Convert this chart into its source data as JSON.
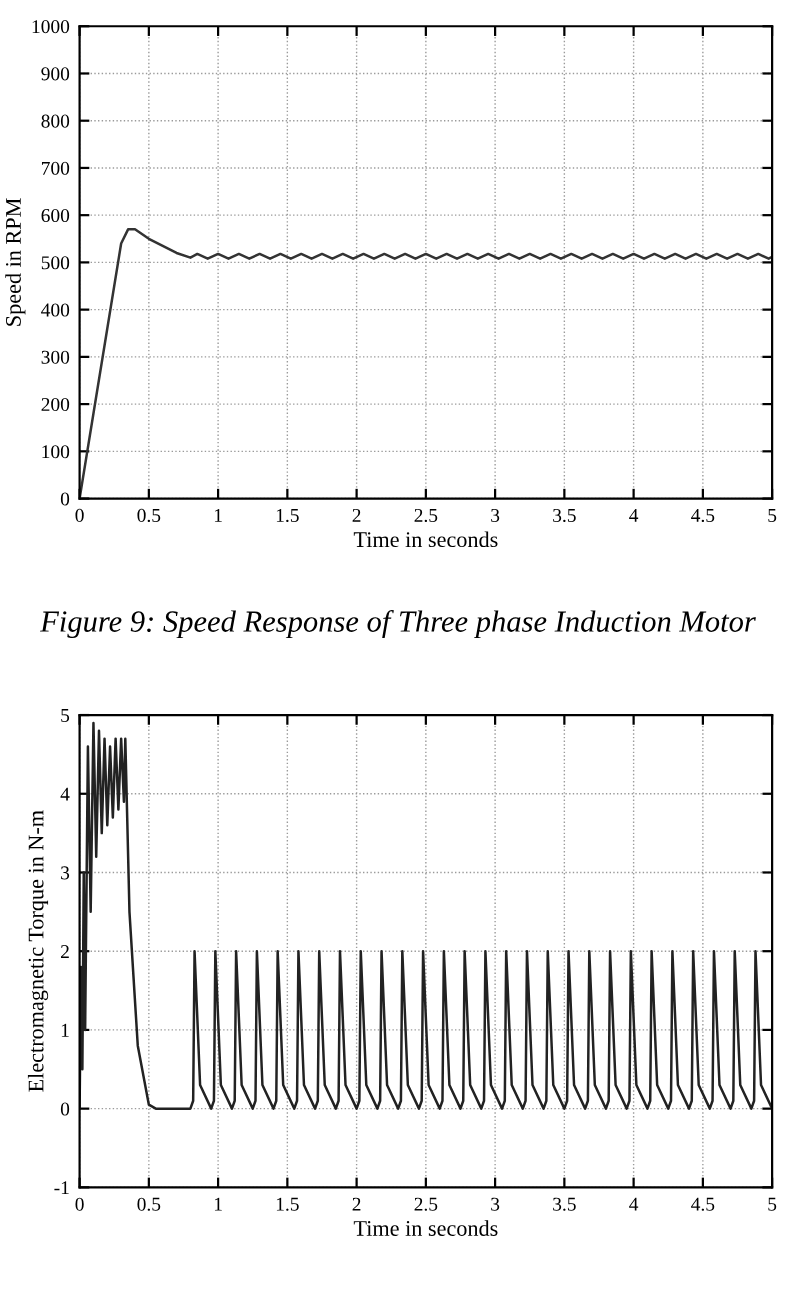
{
  "chart_data": [
    {
      "type": "line",
      "xlabel": "Time in seconds",
      "ylabel": "Speed in RPM",
      "annotations": [
        "Figure 9: Speed Response of Three phase Induction Motor"
      ],
      "xlim": [
        0,
        5
      ],
      "ylim": [
        0,
        1000
      ],
      "xticks": [
        0,
        0.5,
        1,
        1.5,
        2,
        2.5,
        3,
        3.5,
        4,
        4.5,
        5
      ],
      "yticks": [
        0,
        100,
        200,
        300,
        400,
        500,
        600,
        700,
        800,
        900,
        1000
      ],
      "grid": true,
      "line_style": "solid",
      "marker": "none",
      "series": [
        {
          "color": "#333333",
          "x": [
            0,
            0.1,
            0.2,
            0.3,
            0.35,
            0.4,
            0.5,
            0.6,
            0.7,
            0.8,
            0.85,
            0.925,
            1.0,
            1.075,
            1.15,
            1.225,
            1.3,
            1.375,
            1.45,
            1.525,
            1.6,
            1.675,
            1.75,
            1.825,
            1.9,
            1.975,
            2.05,
            2.125,
            2.2,
            2.275,
            2.35,
            2.425,
            2.5,
            2.575,
            2.65,
            2.725,
            2.8,
            2.875,
            2.95,
            3.025,
            3.1,
            3.175,
            3.25,
            3.325,
            3.4,
            3.475,
            3.55,
            3.625,
            3.7,
            3.775,
            3.85,
            3.925,
            4.0,
            4.075,
            4.15,
            4.225,
            4.3,
            4.375,
            4.45,
            4.525,
            4.6,
            4.675,
            4.75,
            4.825,
            4.9,
            4.975,
            5.0
          ],
          "values": [
            0,
            180,
            360,
            540,
            570,
            570,
            550,
            535,
            520,
            510,
            518,
            508,
            518,
            508,
            518,
            508,
            518,
            508,
            518,
            508,
            518,
            508,
            518,
            508,
            518,
            508,
            518,
            508,
            518,
            508,
            518,
            508,
            518,
            508,
            518,
            508,
            518,
            508,
            518,
            508,
            518,
            508,
            518,
            508,
            518,
            508,
            518,
            508,
            518,
            508,
            518,
            508,
            518,
            508,
            518,
            508,
            518,
            508,
            518,
            508,
            518,
            508,
            518,
            508,
            518,
            508,
            512
          ]
        }
      ]
    },
    {
      "type": "line",
      "xlabel": "Time in seconds",
      "ylabel": "Electromagnetic Torque in N-m",
      "xlim": [
        0,
        5
      ],
      "ylim": [
        -1,
        5
      ],
      "xticks": [
        0,
        0.5,
        1,
        1.5,
        2,
        2.5,
        3,
        3.5,
        4,
        4.5,
        5
      ],
      "yticks": [
        -1,
        0,
        1,
        2,
        3,
        4,
        5
      ],
      "grid": true,
      "line_style": "solid",
      "marker": "none",
      "series": [
        {
          "color": "#222222",
          "x": [
            0,
            0.01,
            0.02,
            0.03,
            0.04,
            0.06,
            0.08,
            0.1,
            0.12,
            0.14,
            0.16,
            0.18,
            0.2,
            0.22,
            0.24,
            0.26,
            0.28,
            0.3,
            0.32,
            0.33,
            0.36,
            0.42,
            0.5,
            0.55,
            0.8,
            0.82,
            0.83,
            0.87,
            0.95,
            0.97,
            0.98,
            1.02,
            1.1,
            1.12,
            1.13,
            1.17,
            1.25,
            1.27,
            1.28,
            1.32,
            1.4,
            1.42,
            1.43,
            1.47,
            1.55,
            1.57,
            1.58,
            1.62,
            1.7,
            1.72,
            1.73,
            1.77,
            1.85,
            1.87,
            1.88,
            1.92,
            2.0,
            2.02,
            2.03,
            2.07,
            2.15,
            2.17,
            2.18,
            2.22,
            2.3,
            2.32,
            2.33,
            2.37,
            2.45,
            2.47,
            2.48,
            2.52,
            2.6,
            2.62,
            2.63,
            2.67,
            2.75,
            2.77,
            2.78,
            2.82,
            2.9,
            2.92,
            2.93,
            2.97,
            3.05,
            3.07,
            3.08,
            3.12,
            3.2,
            3.22,
            3.23,
            3.27,
            3.35,
            3.37,
            3.38,
            3.42,
            3.5,
            3.52,
            3.53,
            3.57,
            3.65,
            3.67,
            3.68,
            3.72,
            3.8,
            3.82,
            3.83,
            3.87,
            3.95,
            3.97,
            3.98,
            4.02,
            4.1,
            4.12,
            4.13,
            4.17,
            4.25,
            4.27,
            4.28,
            4.32,
            4.4,
            4.42,
            4.43,
            4.47,
            4.55,
            4.57,
            4.58,
            4.62,
            4.7,
            4.72,
            4.73,
            4.77,
            4.85,
            4.87,
            4.88,
            4.92,
            5.0
          ],
          "values": [
            0,
            1.8,
            0.5,
            3.0,
            1.0,
            4.6,
            2.5,
            4.9,
            3.2,
            4.8,
            3.5,
            4.7,
            3.6,
            4.6,
            3.7,
            4.7,
            3.8,
            4.7,
            3.9,
            4.7,
            2.5,
            0.8,
            0.05,
            0,
            0,
            0.1,
            2.0,
            0.3,
            0.0,
            0.1,
            2.0,
            0.3,
            0.0,
            0.1,
            2.0,
            0.3,
            0.0,
            0.1,
            2.0,
            0.3,
            0.0,
            0.1,
            2.0,
            0.3,
            0.0,
            0.1,
            2.0,
            0.3,
            0.0,
            0.1,
            2.0,
            0.3,
            0.0,
            0.1,
            2.0,
            0.3,
            0.0,
            0.1,
            2.0,
            0.3,
            0.0,
            0.1,
            2.0,
            0.3,
            0.0,
            0.1,
            2.0,
            0.3,
            0.0,
            0.1,
            2.0,
            0.3,
            0.0,
            0.1,
            2.0,
            0.3,
            0.0,
            0.1,
            2.0,
            0.3,
            0.0,
            0.1,
            2.0,
            0.3,
            0.0,
            0.1,
            2.0,
            0.3,
            0.0,
            0.1,
            2.0,
            0.3,
            0.0,
            0.1,
            2.0,
            0.3,
            0.0,
            0.1,
            2.0,
            0.3,
            0.0,
            0.1,
            2.0,
            0.3,
            0.0,
            0.1,
            2.0,
            0.3,
            0.0,
            0.1,
            2.0,
            0.3,
            0.0,
            0.1,
            2.0,
            0.3,
            0.0,
            0.1,
            2.0,
            0.3,
            0.0,
            0.1,
            2.0,
            0.3,
            0.0,
            0.1,
            2.0,
            0.3,
            0.0,
            0.1,
            2.0,
            0.3,
            0.0,
            0.1,
            2.0,
            0.3,
            0.0
          ]
        }
      ]
    }
  ]
}
